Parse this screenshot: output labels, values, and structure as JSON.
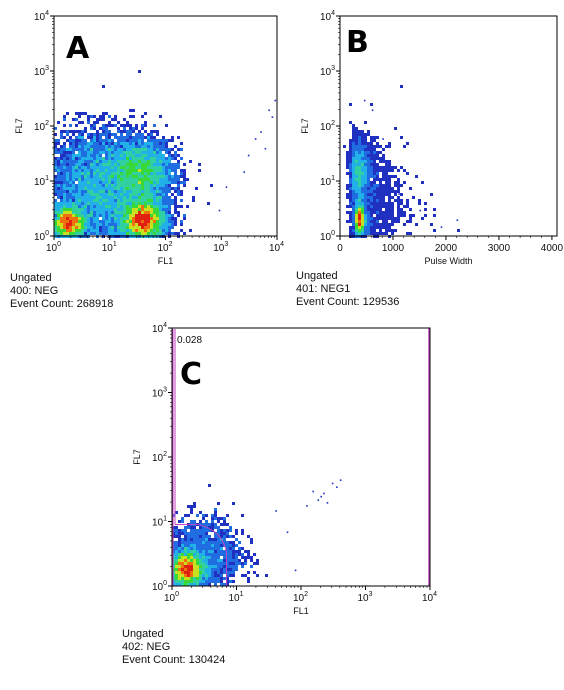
{
  "chart_data": [
    {
      "type": "scatter",
      "panel_letter": "A",
      "xlabel": "FL1",
      "ylabel": "FL7",
      "x_scale": "log",
      "y_scale": "log",
      "xlim": [
        1,
        10000
      ],
      "ylim": [
        1,
        10000
      ],
      "x_ticks": [
        {
          "base": "10",
          "exp": "0"
        },
        {
          "base": "10",
          "exp": "1"
        },
        {
          "base": "10",
          "exp": "2"
        },
        {
          "base": "10",
          "exp": "3"
        },
        {
          "base": "10",
          "exp": "4"
        }
      ],
      "y_ticks": [
        {
          "base": "10",
          "exp": "0"
        },
        {
          "base": "10",
          "exp": "1"
        },
        {
          "base": "10",
          "exp": "2"
        },
        {
          "base": "10",
          "exp": "3"
        },
        {
          "base": "10",
          "exp": "4"
        }
      ],
      "density_clusters": [
        {
          "x": 1.8,
          "y": 1.7,
          "count": 2600,
          "spread": 0.16,
          "peak": "green"
        },
        {
          "x": 40,
          "y": 1.9,
          "count": 4200,
          "spread": 0.2,
          "peak": "red"
        },
        {
          "x": 35,
          "y": 15,
          "count": 3400,
          "spread": 0.3,
          "peak": "cyan"
        },
        {
          "x": 5,
          "y": 12,
          "count": 2800,
          "spread": 0.45,
          "peak": "blue"
        },
        {
          "x": 10,
          "y": 2.5,
          "count": 2200,
          "spread": 0.5,
          "peak": "blue"
        }
      ],
      "sparse_points": [
        [
          3000,
          30
        ],
        [
          5000,
          80
        ],
        [
          8000,
          150
        ],
        [
          2500,
          15
        ],
        [
          1200,
          8
        ],
        [
          900,
          3
        ],
        [
          6000,
          40
        ],
        [
          7000,
          200
        ],
        [
          4000,
          60
        ],
        [
          9000,
          300
        ]
      ],
      "gate": "Ungated",
      "sample": "400: NEG",
      "event_count_label": "Event Count: 268918"
    },
    {
      "type": "scatter",
      "panel_letter": "B",
      "xlabel": "Pulse Width",
      "ylabel": "FL7",
      "x_scale": "linear",
      "y_scale": "log",
      "xlim": [
        0,
        4096
      ],
      "ylim": [
        1,
        10000
      ],
      "x_ticks": [
        "0",
        "1000",
        "2000",
        "3000",
        "4000"
      ],
      "y_ticks": [
        {
          "base": "10",
          "exp": "0"
        },
        {
          "base": "10",
          "exp": "1"
        },
        {
          "base": "10",
          "exp": "2"
        },
        {
          "base": "10",
          "exp": "3"
        },
        {
          "base": "10",
          "exp": "4"
        }
      ],
      "density_clusters": [
        {
          "x": 370,
          "y": 2.0,
          "count": 3600,
          "spread": 0.14,
          "peak": "red"
        },
        {
          "x": 360,
          "y": 14,
          "count": 2800,
          "spread": 0.28,
          "peak": "cyan"
        },
        {
          "x": 500,
          "y": 4,
          "count": 1800,
          "spread": 0.5,
          "peak": "blue"
        }
      ],
      "sparse_points": [
        [
          1500,
          3
        ],
        [
          2200,
          2
        ],
        [
          1900,
          1.5
        ],
        [
          1100,
          6
        ],
        [
          800,
          60
        ],
        [
          600,
          200
        ],
        [
          450,
          300
        ],
        [
          1300,
          2.4
        ]
      ],
      "gate": "Ungated",
      "sample": "401: NEG1",
      "event_count_label": "Event Count: 129536"
    },
    {
      "type": "scatter",
      "panel_letter": "C",
      "xlabel": "FL1",
      "ylabel": "FL7",
      "x_scale": "log",
      "y_scale": "log",
      "xlim": [
        1,
        10000
      ],
      "ylim": [
        1,
        10000
      ],
      "x_ticks": [
        {
          "base": "10",
          "exp": "0"
        },
        {
          "base": "10",
          "exp": "1"
        },
        {
          "base": "10",
          "exp": "2"
        },
        {
          "base": "10",
          "exp": "3"
        },
        {
          "base": "10",
          "exp": "4"
        }
      ],
      "y_ticks": [
        {
          "base": "10",
          "exp": "0"
        },
        {
          "base": "10",
          "exp": "1"
        },
        {
          "base": "10",
          "exp": "2"
        },
        {
          "base": "10",
          "exp": "3"
        },
        {
          "base": "10",
          "exp": "4"
        }
      ],
      "density_clusters": [
        {
          "x": 1.7,
          "y": 1.8,
          "count": 4200,
          "spread": 0.14,
          "peak": "red"
        },
        {
          "x": 3,
          "y": 3,
          "count": 1400,
          "spread": 0.3,
          "peak": "blue"
        }
      ],
      "sparse_points": [
        [
          150,
          30
        ],
        [
          200,
          25
        ],
        [
          300,
          40
        ],
        [
          400,
          45
        ],
        [
          250,
          20
        ],
        [
          120,
          18
        ],
        [
          180,
          22
        ],
        [
          60,
          7
        ],
        [
          40,
          15
        ],
        [
          80,
          1.8
        ],
        [
          350,
          35
        ],
        [
          220,
          28
        ]
      ],
      "gate_region": {
        "label": "0.028",
        "x_range": [
          1,
          7
        ],
        "y_range": [
          1,
          10000
        ],
        "color": "#c040c0"
      },
      "gate": "Ungated",
      "sample": "402: NEG",
      "event_count_label": "Event Count: 130424"
    }
  ],
  "colors": {
    "density": [
      "#2030c0",
      "#1f6de0",
      "#22b0e8",
      "#30d0a0",
      "#38d838",
      "#c8e020",
      "#f07010",
      "#e02010"
    ],
    "gate": "#c040c0",
    "axis": "#000000"
  }
}
